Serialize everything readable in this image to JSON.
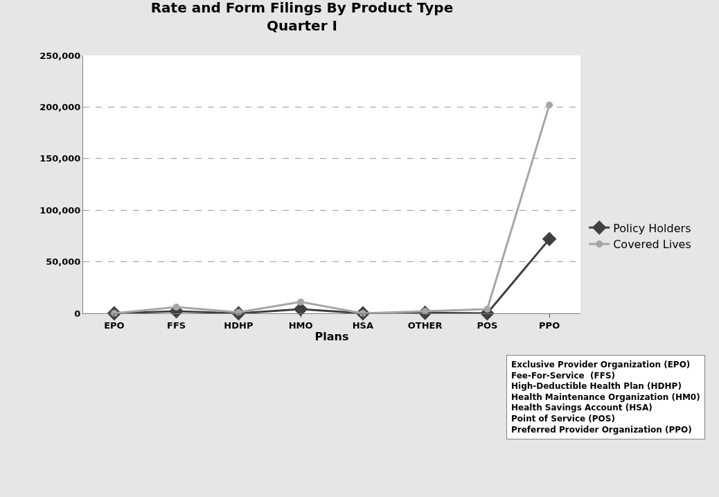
{
  "chart_data": {
    "type": "line",
    "title": "Rate and Form Filings By Product Type",
    "subtitle": "Quarter I",
    "xlabel": "Plans",
    "categories": [
      "EPO",
      "FFS",
      "HDHP",
      "HMO",
      "HSA",
      "OTHER",
      "POS",
      "PPO"
    ],
    "series": [
      {
        "name": "Policy Holders",
        "color": "#404040",
        "marker": "diamond",
        "values": [
          0,
          2000,
          0,
          4000,
          0,
          500,
          0,
          72000
        ]
      },
      {
        "name": "Covered Lives",
        "color": "#a6a6a6",
        "marker": "circle",
        "values": [
          0,
          6000,
          1000,
          11000,
          0,
          2000,
          4000,
          202000
        ]
      }
    ],
    "ylim": [
      0,
      250000
    ],
    "yticks": [
      {
        "value": 0,
        "label": "0"
      },
      {
        "value": 50000,
        "label": "50,000"
      },
      {
        "value": 100000,
        "label": "100,000"
      },
      {
        "value": 150000,
        "label": "150,000"
      },
      {
        "value": 200000,
        "label": "200,000"
      },
      {
        "value": 250000,
        "label": "250,000"
      }
    ],
    "grid": "y",
    "legend": "right",
    "annotations": [
      "Exclusive Provider Organization (EPO)\nFee-For-Service  (FFS)\nHigh-Deductible Health Plan (HDHP)\nHealth Maintenance Organization (HM0)\nHealth Savings Account (HSA)\nPoint of Service (POS)\nPreferred Provider Organization (PPO)"
    ]
  }
}
